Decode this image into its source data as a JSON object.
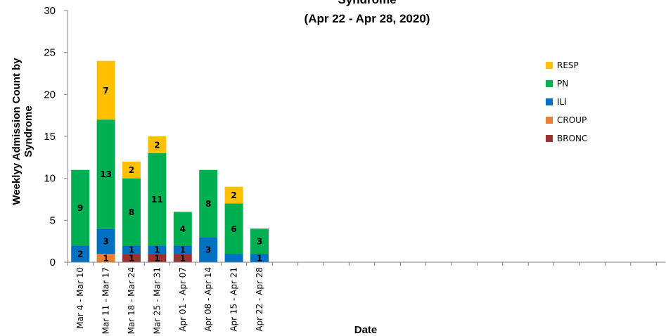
{
  "chart_data": {
    "type": "bar",
    "stacked": true,
    "title_lines": [
      "Syndrome",
      "(Apr 22 - Apr 28, 2020)"
    ],
    "xlabel": "Date",
    "ylabel": "Weeklyy Admission Count by Syndrome",
    "ylim": [
      0,
      30
    ],
    "yticks": [
      0,
      5,
      10,
      15,
      20,
      25,
      30
    ],
    "categories": [
      "Mar 4 - Mar 10",
      "Mar 11 - Mar 17",
      "Mar 18 - Mar 24",
      "Mar 25 - Mar 31",
      "Apr 01 - Apr 07",
      "Apr 08 - Apr 14",
      "Apr 15 - Apr 21",
      "Apr 22 - Apr 28"
    ],
    "series": [
      {
        "name": "BRONC",
        "color": "#993333",
        "values": [
          0,
          0,
          1,
          1,
          1,
          0,
          0,
          0
        ]
      },
      {
        "name": "CROUP",
        "color": "#ED7D31",
        "values": [
          0,
          1,
          0,
          0,
          0,
          0,
          0,
          0
        ]
      },
      {
        "name": "ILI",
        "color": "#0070C0",
        "values": [
          2,
          3,
          1,
          1,
          1,
          3,
          1,
          1
        ]
      },
      {
        "name": "PN",
        "color": "#00B050",
        "values": [
          9,
          13,
          8,
          11,
          4,
          8,
          6,
          3
        ]
      },
      {
        "name": "RESP",
        "color": "#FFC000",
        "values": [
          0,
          7,
          2,
          2,
          0,
          0,
          2,
          0
        ]
      }
    ],
    "data_labels": {
      "BRONC": [
        "",
        "",
        "1",
        "1",
        "1",
        "",
        "",
        ""
      ],
      "CROUP": [
        "",
        "1",
        "",
        "",
        "",
        "",
        "",
        ""
      ],
      "ILI": [
        "2",
        "3",
        "1",
        "1",
        "1",
        "3",
        "",
        "1"
      ],
      "PN": [
        "9",
        "13",
        "8",
        "11",
        "4",
        "8",
        "6",
        "3"
      ],
      "RESP": [
        "",
        "7",
        "2",
        "2",
        "",
        "",
        "2",
        ""
      ]
    },
    "legend_order": [
      "RESP",
      "PN",
      "ILI",
      "CROUP",
      "BRONC"
    ],
    "legend_position": "right",
    "grid": false
  }
}
